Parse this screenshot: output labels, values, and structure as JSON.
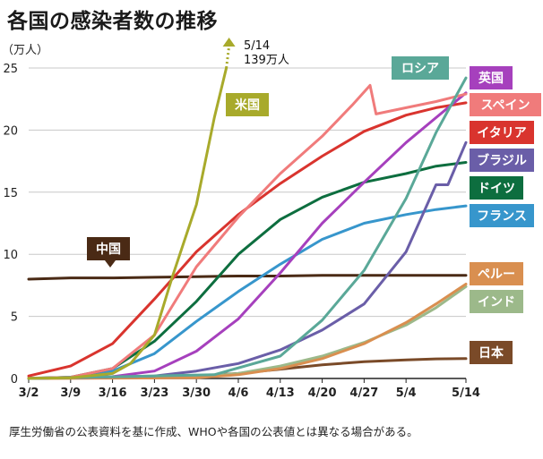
{
  "title": "各国の感染者数の推移",
  "footnote": "厚生労働省の公表資料を基に作成、WHOや各国の公表値とは異なる場合がある。",
  "chart_data": {
    "type": "line",
    "title": "各国の感染者数の推移",
    "ylabel": "（万人）",
    "xlabel": "",
    "x_ticks": [
      "3/2",
      "3/9",
      "3/16",
      "3/23",
      "3/30",
      "4/6",
      "4/13",
      "4/20",
      "4/27",
      "5/4",
      "5/14"
    ],
    "y_ticks": [
      "0",
      "5",
      "10",
      "15",
      "20",
      "25"
    ],
    "ylim": [
      0,
      25
    ],
    "grid": true,
    "annotation": {
      "lines": [
        "5/14",
        "139万人"
      ],
      "series": "米国",
      "date": "5/14",
      "value": 139
    },
    "series": [
      {
        "name": "米国",
        "color": "#a8aa2b",
        "points": [
          [
            "3/2",
            0.01
          ],
          [
            "3/9",
            0.05
          ],
          [
            "3/16",
            0.4
          ],
          [
            "3/19",
            1.2
          ],
          [
            "3/23",
            3.5
          ],
          [
            "3/26",
            8.2
          ],
          [
            "3/30",
            14.0
          ],
          [
            "4/2",
            21.0
          ],
          [
            "4/4",
            25.0
          ]
        ]
      },
      {
        "name": "ロシア",
        "color": "#5aa898",
        "points": [
          [
            "3/2",
            0
          ],
          [
            "4/2",
            0.3
          ],
          [
            "4/13",
            1.8
          ],
          [
            "4/20",
            4.7
          ],
          [
            "4/27",
            8.7
          ],
          [
            "5/4",
            14.5
          ],
          [
            "5/9",
            19.8
          ],
          [
            "5/14",
            24.2
          ]
        ]
      },
      {
        "name": "英国",
        "color": "#a640bd",
        "points": [
          [
            "3/2",
            0
          ],
          [
            "3/16",
            0.15
          ],
          [
            "3/23",
            0.6
          ],
          [
            "3/30",
            2.2
          ],
          [
            "4/6",
            4.8
          ],
          [
            "4/13",
            8.5
          ],
          [
            "4/20",
            12.5
          ],
          [
            "4/27",
            15.8
          ],
          [
            "5/4",
            19.0
          ],
          [
            "5/9",
            21.0
          ],
          [
            "5/14",
            23.0
          ]
        ]
      },
      {
        "name": "スペイン",
        "color": "#f07b7b",
        "points": [
          [
            "3/2",
            0.01
          ],
          [
            "3/9",
            0.1
          ],
          [
            "3/16",
            0.8
          ],
          [
            "3/23",
            3.5
          ],
          [
            "3/30",
            9.0
          ],
          [
            "4/6",
            13.0
          ],
          [
            "4/13",
            16.5
          ],
          [
            "4/20",
            19.5
          ],
          [
            "4/25",
            22.0
          ],
          [
            "4/28",
            23.6
          ],
          [
            "4/29",
            21.3
          ],
          [
            "5/4",
            21.8
          ],
          [
            "5/9",
            22.3
          ],
          [
            "5/14",
            22.9
          ]
        ]
      },
      {
        "name": "イタリア",
        "color": "#d9342e",
        "points": [
          [
            "3/2",
            0.2
          ],
          [
            "3/9",
            1.0
          ],
          [
            "3/16",
            2.8
          ],
          [
            "3/23",
            6.4
          ],
          [
            "3/30",
            10.2
          ],
          [
            "4/6",
            13.2
          ],
          [
            "4/13",
            15.7
          ],
          [
            "4/20",
            17.9
          ],
          [
            "4/27",
            19.9
          ],
          [
            "5/4",
            21.2
          ],
          [
            "5/9",
            21.8
          ],
          [
            "5/14",
            22.2
          ]
        ]
      },
      {
        "name": "ブラジル",
        "color": "#6a5ea8",
        "points": [
          [
            "3/2",
            0
          ],
          [
            "3/23",
            0.2
          ],
          [
            "3/30",
            0.6
          ],
          [
            "4/6",
            1.2
          ],
          [
            "4/13",
            2.3
          ],
          [
            "4/20",
            3.9
          ],
          [
            "4/27",
            6.0
          ],
          [
            "5/4",
            10.2
          ],
          [
            "5/9",
            15.6
          ],
          [
            "5/11",
            15.6
          ],
          [
            "5/14",
            19.0
          ]
        ]
      },
      {
        "name": "ドイツ",
        "color": "#0d6e3f",
        "points": [
          [
            "3/2",
            0.02
          ],
          [
            "3/9",
            0.1
          ],
          [
            "3/16",
            0.8
          ],
          [
            "3/23",
            3.0
          ],
          [
            "3/30",
            6.2
          ],
          [
            "4/6",
            10.0
          ],
          [
            "4/13",
            12.8
          ],
          [
            "4/20",
            14.6
          ],
          [
            "4/27",
            15.8
          ],
          [
            "5/4",
            16.5
          ],
          [
            "5/9",
            17.1
          ],
          [
            "5/14",
            17.4
          ]
        ]
      },
      {
        "name": "フランス",
        "color": "#3796cc",
        "points": [
          [
            "3/2",
            0.01
          ],
          [
            "3/9",
            0.1
          ],
          [
            "3/16",
            0.6
          ],
          [
            "3/23",
            2.0
          ],
          [
            "3/30",
            4.6
          ],
          [
            "4/6",
            7.0
          ],
          [
            "4/13",
            9.2
          ],
          [
            "4/20",
            11.2
          ],
          [
            "4/27",
            12.5
          ],
          [
            "5/4",
            13.2
          ],
          [
            "5/9",
            13.6
          ],
          [
            "5/14",
            13.9
          ]
        ]
      },
      {
        "name": "中国",
        "color": "#4a2a15",
        "points": [
          [
            "3/2",
            8.0
          ],
          [
            "3/9",
            8.1
          ],
          [
            "3/16",
            8.1
          ],
          [
            "3/23",
            8.15
          ],
          [
            "3/30",
            8.2
          ],
          [
            "4/6",
            8.25
          ],
          [
            "4/13",
            8.25
          ],
          [
            "4/20",
            8.3
          ],
          [
            "4/27",
            8.3
          ],
          [
            "5/4",
            8.3
          ],
          [
            "5/14",
            8.3
          ]
        ]
      },
      {
        "name": "ペルー",
        "color": "#d98f50",
        "points": [
          [
            "3/2",
            0
          ],
          [
            "3/30",
            0.05
          ],
          [
            "4/6",
            0.3
          ],
          [
            "4/13",
            0.8
          ],
          [
            "4/20",
            1.6
          ],
          [
            "4/27",
            2.8
          ],
          [
            "5/4",
            4.5
          ],
          [
            "5/9",
            6.0
          ],
          [
            "5/14",
            7.6
          ]
        ]
      },
      {
        "name": "インド",
        "color": "#9cb98a",
        "points": [
          [
            "3/2",
            0
          ],
          [
            "3/30",
            0.1
          ],
          [
            "4/6",
            0.4
          ],
          [
            "4/13",
            1.0
          ],
          [
            "4/20",
            1.8
          ],
          [
            "4/27",
            2.9
          ],
          [
            "5/4",
            4.3
          ],
          [
            "5/9",
            5.7
          ],
          [
            "5/14",
            7.4
          ]
        ]
      },
      {
        "name": "日本",
        "color": "#7a4a28",
        "points": [
          [
            "3/2",
            0.02
          ],
          [
            "3/16",
            0.08
          ],
          [
            "3/30",
            0.2
          ],
          [
            "4/6",
            0.4
          ],
          [
            "4/13",
            0.75
          ],
          [
            "4/20",
            1.1
          ],
          [
            "4/27",
            1.35
          ],
          [
            "5/4",
            1.5
          ],
          [
            "5/9",
            1.58
          ],
          [
            "5/14",
            1.6
          ]
        ]
      }
    ]
  }
}
